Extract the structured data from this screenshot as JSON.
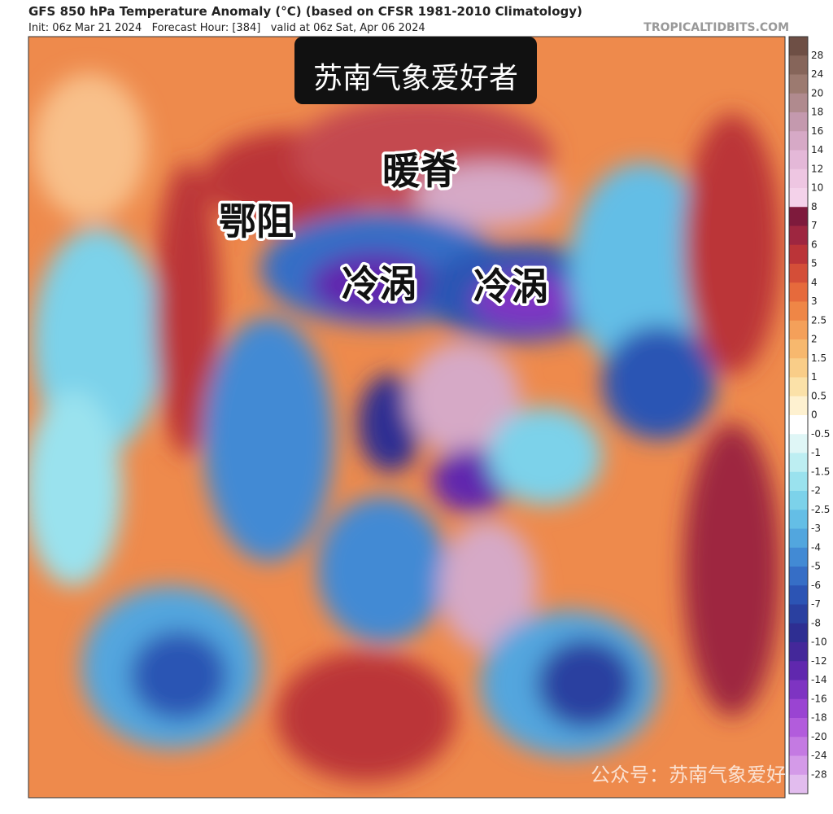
{
  "header": {
    "title": "GFS 850 hPa Temperature Anomaly (°C) (based on CFSR 1981-2010 Climatology)",
    "subtitle": "Init: 06z Mar 21 2024   Forecast Hour: [384]   valid at 06z Sat, Apr 06 2024",
    "source": "TROPICALTIDBITS.COM"
  },
  "overlay": {
    "banner": "苏南气象爱好者",
    "labels": [
      "暖脊",
      "鄂阻",
      "冷涡",
      "冷涡"
    ],
    "watermark": "公众号：苏南气象爱好者"
  },
  "colorbar": {
    "ticks": [
      28,
      24,
      20,
      18,
      16,
      14,
      12,
      10,
      8,
      7,
      6,
      5,
      4,
      3,
      2.5,
      2,
      1.5,
      1,
      0.5,
      0,
      -0.5,
      -1,
      -1.5,
      -2,
      -2.5,
      -3,
      -4,
      -5,
      -6,
      -7,
      -8,
      -10,
      -12,
      -14,
      -16,
      -18,
      -20,
      -24,
      -28
    ],
    "colors": [
      "#6e4f45",
      "#86655a",
      "#9c7a70",
      "#b08a8e",
      "#c499ae",
      "#d6a9c6",
      "#e4b8d8",
      "#eec6e2",
      "#f4d2ea",
      "#7e1a3c",
      "#9e2640",
      "#bb3438",
      "#d44e38",
      "#e66a3c",
      "#ef8646",
      "#f4a05a",
      "#f7b86e",
      "#f9cd88",
      "#fbe1a8",
      "#fef1d0",
      "#ffffff",
      "#dff6f6",
      "#bdeef2",
      "#9ae2ee",
      "#7cd2ea",
      "#64bee6",
      "#52a6de",
      "#428ad4",
      "#366ec6",
      "#2c54b4",
      "#2a40a0",
      "#2e2e92",
      "#44289a",
      "#6028ae",
      "#7e34c2",
      "#9a44d2",
      "#b25cdc",
      "#c47ae2",
      "#d49ae8",
      "#e2bcee"
    ]
  }
}
